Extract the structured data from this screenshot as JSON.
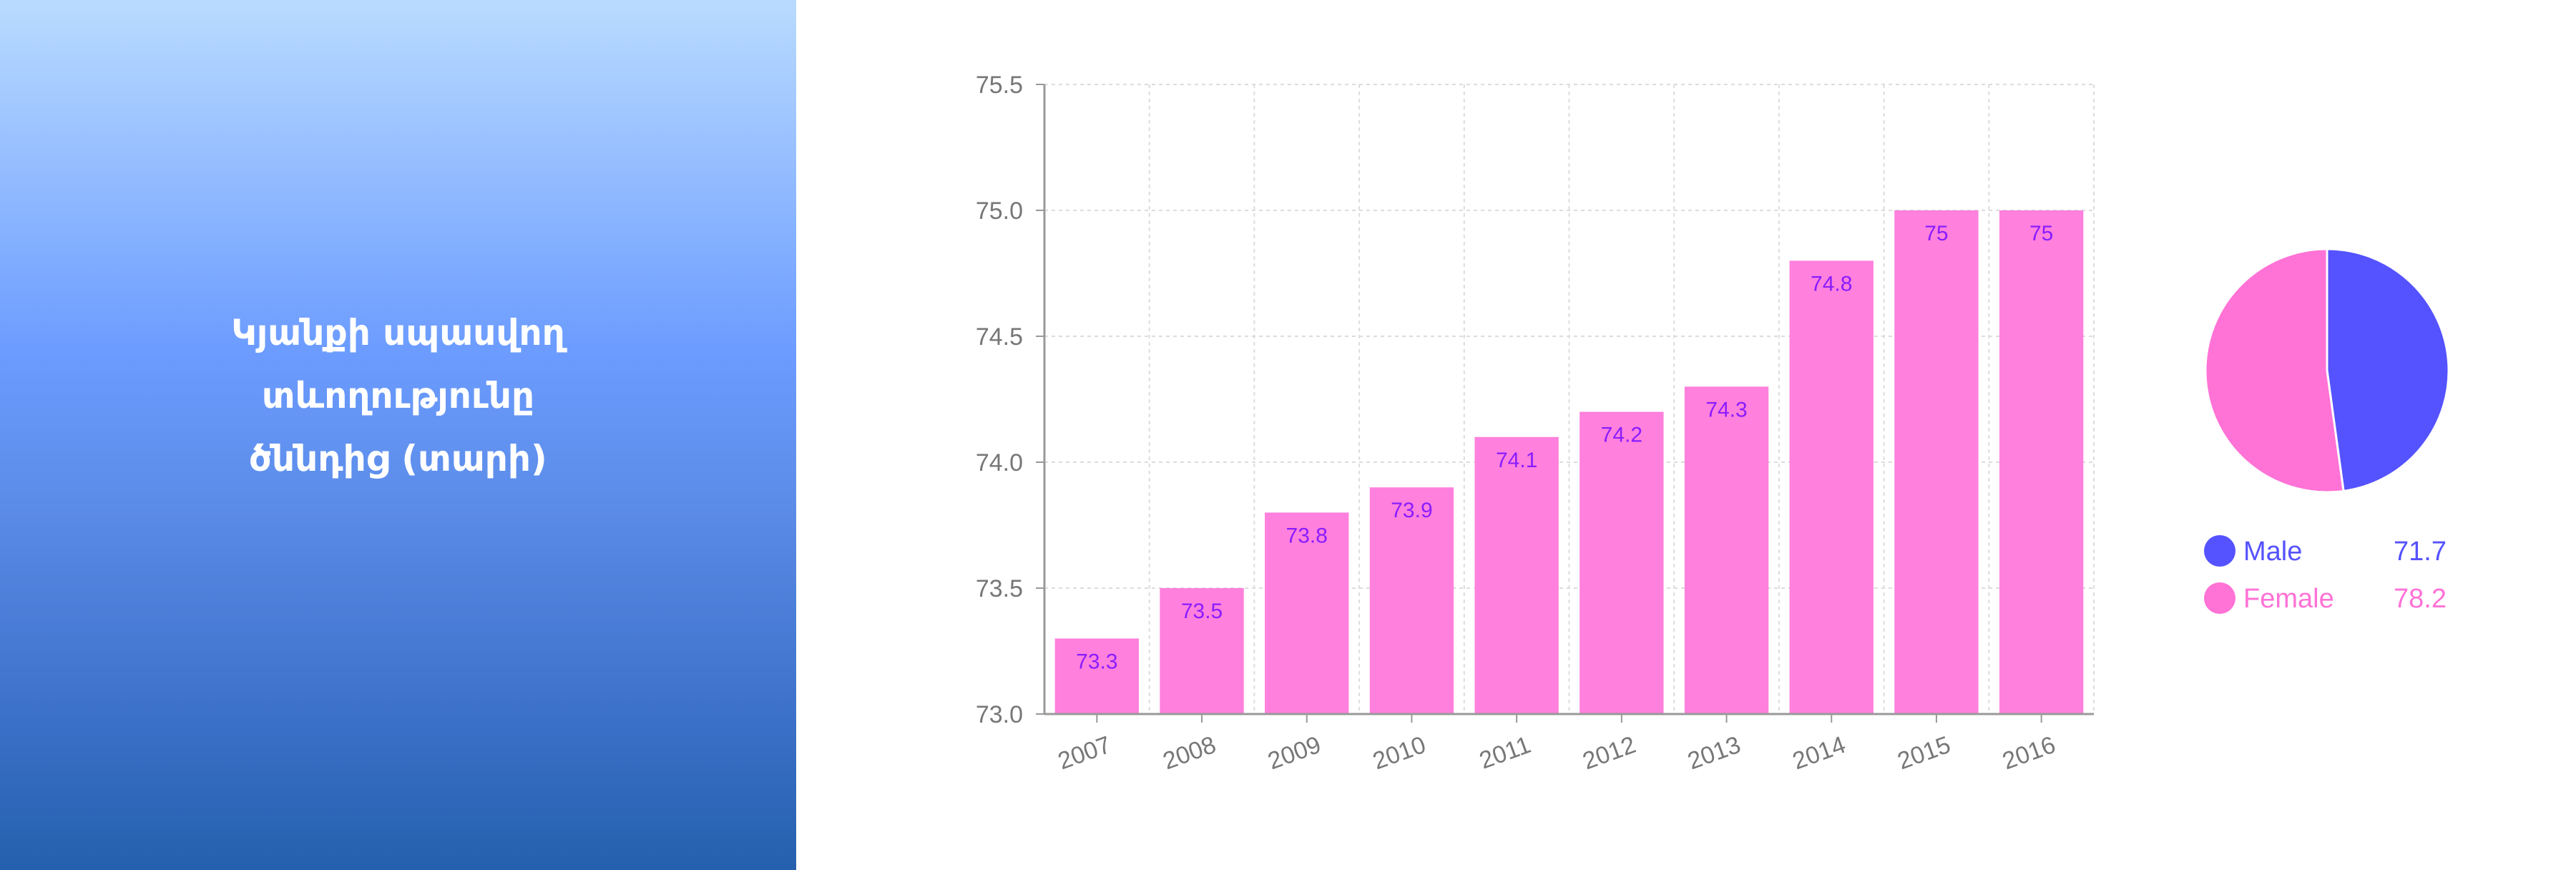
{
  "panel": {
    "title_lines": [
      "Կյանքի սպասվող",
      "տևողությունը",
      "ծննդից (տարի)"
    ]
  },
  "chart_data": [
    {
      "type": "bar",
      "categories": [
        "2007",
        "2008",
        "2009",
        "2010",
        "2011",
        "2012",
        "2013",
        "2014",
        "2015",
        "2016"
      ],
      "values": [
        73.3,
        73.5,
        73.8,
        73.9,
        74.1,
        74.2,
        74.3,
        74.8,
        75,
        75
      ],
      "data_labels": [
        "73.3",
        "73.5",
        "73.8",
        "73.9",
        "74.1",
        "74.2",
        "74.3",
        "74.8",
        "75",
        "75"
      ],
      "ylim": [
        73.0,
        75.5
      ],
      "yticks": [
        "73.0",
        "73.5",
        "74.0",
        "74.5",
        "75.0",
        "75.5"
      ],
      "grid": true,
      "bar_color": "#ff80dd",
      "label_color": "#8a1cff"
    },
    {
      "type": "pie",
      "slices": [
        {
          "label": "Male",
          "value": 71.7,
          "display": "71.7",
          "color": "#5552ff"
        },
        {
          "label": "Female",
          "value": 78.2,
          "display": "78.2",
          "color": "#ff72d6"
        }
      ],
      "legend": "bottom"
    }
  ]
}
